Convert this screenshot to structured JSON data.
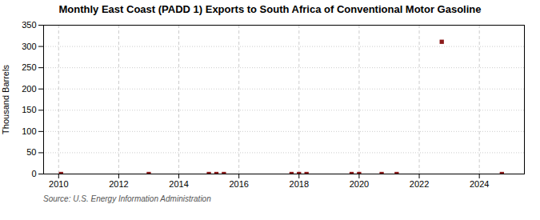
{
  "chart_data": {
    "type": "scatter",
    "title": "Monthly East Coast (PADD 1) Exports to South Africa of Conventional Motor Gasoline",
    "ylabel": "Thousand Barrels",
    "source": "Source: U.S. Energy Information Administration",
    "x": [
      2010.08,
      2013.0,
      2015.0,
      2015.25,
      2015.5,
      2017.75,
      2018.0,
      2018.25,
      2019.75,
      2020.0,
      2020.75,
      2021.25,
      2022.75,
      2024.75
    ],
    "values": [
      0,
      0,
      0,
      0,
      0,
      0,
      0,
      0,
      0,
      0,
      0,
      0,
      311,
      0
    ],
    "color": "#8b1a1a",
    "marker": "square",
    "xlim": [
      2009.5,
      2025.5
    ],
    "ylim": [
      0,
      350
    ],
    "xticks": [
      2010,
      2012,
      2014,
      2016,
      2018,
      2020,
      2022,
      2024
    ],
    "yticks": [
      0,
      50,
      100,
      150,
      200,
      250,
      300,
      350
    ],
    "grid": true
  }
}
